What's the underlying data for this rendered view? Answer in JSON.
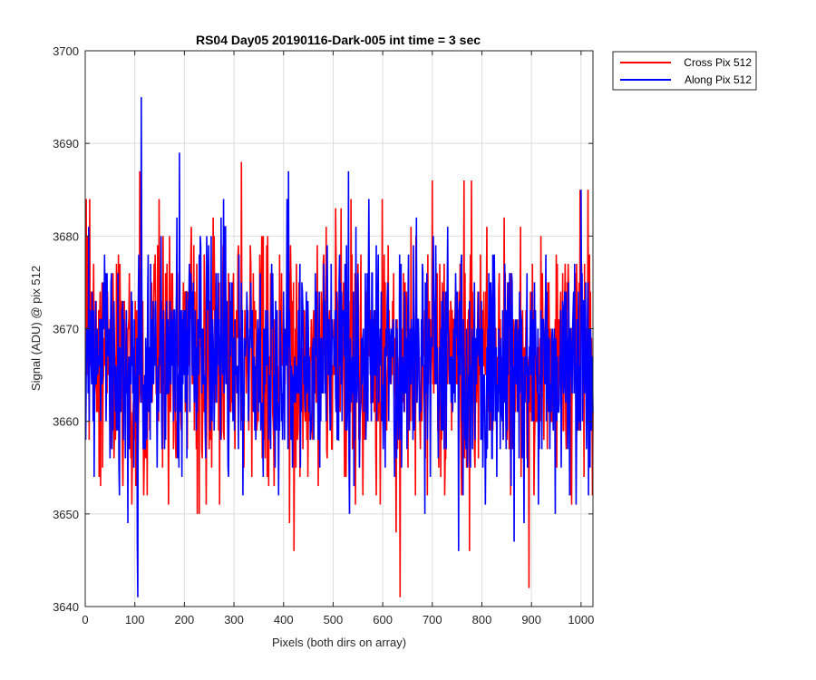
{
  "chart_data": {
    "type": "line",
    "title": "RS04 Day05 20190116-Dark-005 int time = 3 sec",
    "xlabel": "Pixels (both dirs on array)",
    "ylabel": "Signal (ADU) @ pix 512",
    "xlim": [
      0,
      1024
    ],
    "ylim": [
      3640,
      3700
    ],
    "xticks": [
      0,
      100,
      200,
      300,
      400,
      500,
      600,
      700,
      800,
      900,
      1000
    ],
    "yticks": [
      3640,
      3650,
      3660,
      3670,
      3680,
      3690,
      3700
    ],
    "grid": true,
    "legend_position": "outside-top-right",
    "series": [
      {
        "name": "Cross Pix 512",
        "color": "#ff0000",
        "x_start": 1,
        "x_step": 1,
        "noise": {
          "mean": 3666.5,
          "std": 6.5,
          "min": 3646,
          "max": 3684,
          "points": 1024
        },
        "peaks": [
          {
            "x": 2,
            "y": 3684
          },
          {
            "x": 9,
            "y": 3684
          },
          {
            "x": 110,
            "y": 3687
          },
          {
            "x": 315,
            "y": 3688
          },
          {
            "x": 421,
            "y": 3646
          },
          {
            "x": 635,
            "y": 3641
          },
          {
            "x": 700,
            "y": 3686
          },
          {
            "x": 764,
            "y": 3686
          },
          {
            "x": 779,
            "y": 3686
          },
          {
            "x": 775,
            "y": 3646
          },
          {
            "x": 895,
            "y": 3642
          },
          {
            "x": 998,
            "y": 3685
          },
          {
            "x": 1014,
            "y": 3685
          }
        ]
      },
      {
        "name": "Along Pix 512",
        "color": "#0000ff",
        "x_start": 1,
        "x_step": 1,
        "noise": {
          "mean": 3666.5,
          "std": 6.3,
          "min": 3647,
          "max": 3684,
          "points": 1024
        },
        "peaks": [
          {
            "x": 105,
            "y": 3647
          },
          {
            "x": 106,
            "y": 3641
          },
          {
            "x": 113,
            "y": 3695
          },
          {
            "x": 190,
            "y": 3689
          },
          {
            "x": 410,
            "y": 3687
          },
          {
            "x": 531,
            "y": 3687
          },
          {
            "x": 753,
            "y": 3646
          },
          {
            "x": 865,
            "y": 3647
          },
          {
            "x": 1000,
            "y": 3685
          }
        ]
      }
    ]
  }
}
